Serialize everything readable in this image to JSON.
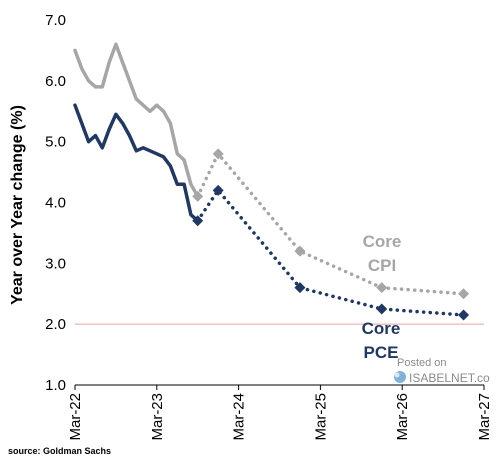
{
  "chart_data": {
    "type": "line",
    "ylabel": "Year over Year change (%)",
    "ylim": [
      1.0,
      7.0
    ],
    "yticks": [
      "1.0",
      "2.0",
      "3.0",
      "4.0",
      "5.0",
      "6.0",
      "7.0"
    ],
    "xticks": [
      "Mar-22",
      "Mar-23",
      "Mar-24",
      "Mar-25",
      "Mar-26",
      "Mar-27"
    ],
    "xlim": [
      "2022-03",
      "2027-03"
    ],
    "reference_line": {
      "y": 2.0,
      "color": "#e8a0a0"
    },
    "series": [
      {
        "name": "Core CPI",
        "label_lines": [
          "Core",
          "CPI"
        ],
        "color": "#a6a6a6",
        "actual": [
          [
            "2022-03",
            6.5
          ],
          [
            "2022-04",
            6.2
          ],
          [
            "2022-05",
            6.0
          ],
          [
            "2022-06",
            5.9
          ],
          [
            "2022-07",
            5.9
          ],
          [
            "2022-08",
            6.3
          ],
          [
            "2022-09",
            6.6
          ],
          [
            "2022-10",
            6.3
          ],
          [
            "2022-11",
            6.0
          ],
          [
            "2022-12",
            5.7
          ],
          [
            "2023-01",
            5.6
          ],
          [
            "2023-02",
            5.5
          ],
          [
            "2023-03",
            5.6
          ],
          [
            "2023-04",
            5.5
          ],
          [
            "2023-05",
            5.3
          ],
          [
            "2023-06",
            4.8
          ],
          [
            "2023-07",
            4.7
          ],
          [
            "2023-08",
            4.3
          ],
          [
            "2023-09",
            4.1
          ]
        ],
        "forecast": [
          [
            "2023-09",
            4.1
          ],
          [
            "2023-12",
            4.8
          ],
          [
            "2024-12",
            3.2
          ],
          [
            "2025-12",
            2.6
          ],
          [
            "2026-12",
            2.5
          ]
        ]
      },
      {
        "name": "Core PCE",
        "label_lines": [
          "Core",
          "PCE"
        ],
        "color": "#1f3864",
        "actual": [
          [
            "2022-03",
            5.6
          ],
          [
            "2022-04",
            5.3
          ],
          [
            "2022-05",
            5.0
          ],
          [
            "2022-06",
            5.1
          ],
          [
            "2022-07",
            4.9
          ],
          [
            "2022-08",
            5.2
          ],
          [
            "2022-09",
            5.45
          ],
          [
            "2022-10",
            5.3
          ],
          [
            "2022-11",
            5.1
          ],
          [
            "2022-12",
            4.85
          ],
          [
            "2023-01",
            4.9
          ],
          [
            "2023-02",
            4.85
          ],
          [
            "2023-03",
            4.8
          ],
          [
            "2023-04",
            4.75
          ],
          [
            "2023-05",
            4.6
          ],
          [
            "2023-06",
            4.3
          ],
          [
            "2023-07",
            4.3
          ],
          [
            "2023-08",
            3.8
          ],
          [
            "2023-09",
            3.7
          ]
        ],
        "forecast": [
          [
            "2023-09",
            3.7
          ],
          [
            "2023-12",
            4.2
          ],
          [
            "2024-12",
            2.6
          ],
          [
            "2025-12",
            2.25
          ],
          [
            "2026-12",
            2.15
          ]
        ]
      }
    ]
  },
  "source": "source: Goldman Sachs",
  "watermark": {
    "line1": "Posted on",
    "line2": "ISABELNET.co"
  }
}
